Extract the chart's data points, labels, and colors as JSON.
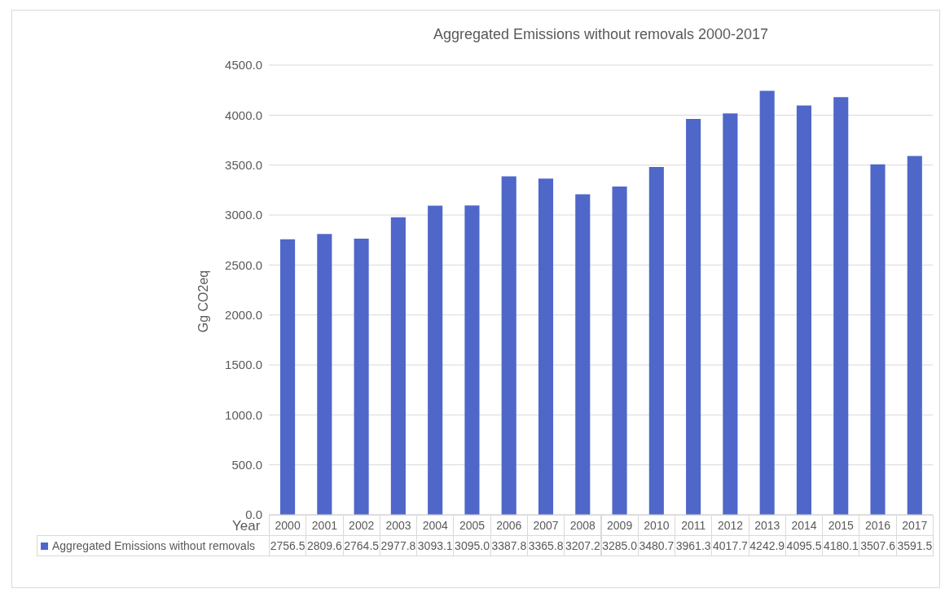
{
  "chart_data": {
    "type": "bar",
    "title": "Aggregated Emissions without removals 2000-2017",
    "xlabel": "Year",
    "ylabel": "Gg CO2eq",
    "categories": [
      "2000",
      "2001",
      "2002",
      "2003",
      "2004",
      "2005",
      "2006",
      "2007",
      "2008",
      "2009",
      "2010",
      "2011",
      "2012",
      "2013",
      "2014",
      "2015",
      "2016",
      "2017"
    ],
    "series": [
      {
        "name": "Aggregated Emissions without removals",
        "color": "#4f67c9",
        "values": [
          2756.5,
          2809.6,
          2764.5,
          2977.8,
          3093.1,
          3095.0,
          3387.8,
          3365.8,
          3207.2,
          3285.0,
          3480.7,
          3961.3,
          4017.7,
          4242.9,
          4095.5,
          4180.1,
          3507.6,
          3591.5
        ]
      }
    ],
    "ylim": [
      0,
      4500
    ],
    "yticks": [
      {
        "value": 0,
        "label": "0.0"
      },
      {
        "value": 500,
        "label": "500.0"
      },
      {
        "value": 1000,
        "label": "1000.0"
      },
      {
        "value": 1500,
        "label": "1500.0"
      },
      {
        "value": 2000,
        "label": "2000.0"
      },
      {
        "value": 2500,
        "label": "2500.0"
      },
      {
        "value": 3000,
        "label": "3000.0"
      },
      {
        "value": 3500,
        "label": "3500.0"
      },
      {
        "value": 4000,
        "label": "4000.0"
      },
      {
        "value": 4500,
        "label": "4500.0"
      }
    ],
    "value_labels": [
      "2756.5",
      "2809.6",
      "2764.5",
      "2977.8",
      "3093.1",
      "3095.0",
      "3387.8",
      "3365.8",
      "3207.2",
      "3285.0",
      "3480.7",
      "3961.3",
      "4017.7",
      "4242.9",
      "4095.5",
      "4180.1",
      "3507.6",
      "3591.5"
    ],
    "grid": "y",
    "legend": "bottom"
  }
}
